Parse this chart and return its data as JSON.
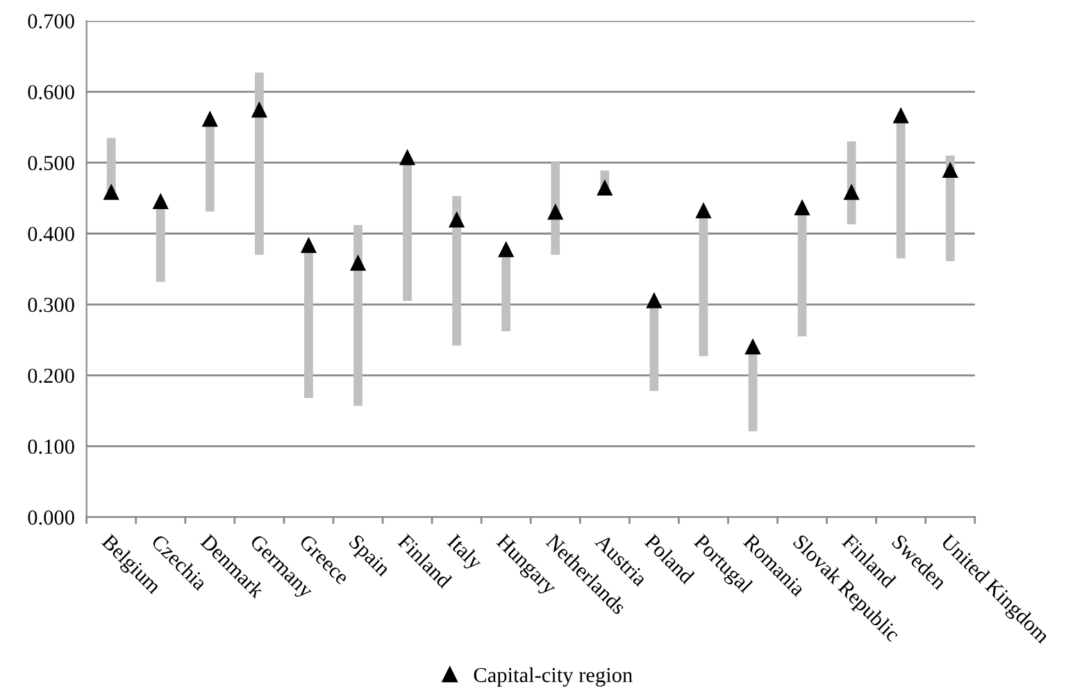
{
  "chart_data": {
    "type": "bar",
    "categories": [
      "Belgium",
      "Czechia",
      "Denmark",
      "Germany",
      "Greece",
      "Spain",
      "Finland",
      "Italy",
      "Hungary",
      "Netherlands",
      "Austria",
      "Poland",
      "Portugal",
      "Romania",
      "Slovak Republic",
      "Finland",
      "Sweden",
      "United Kingdom"
    ],
    "series": [
      {
        "color": "#c0c0c0",
        "base": [
          0.459,
          0.332,
          0.431,
          0.37,
          0.168,
          0.157,
          0.305,
          0.242,
          0.262,
          0.37,
          0.465,
          0.178,
          0.227,
          0.121,
          0.255,
          0.413,
          0.365,
          0.361
        ],
        "values": [
          0.076,
          0.114,
          0.131,
          0.257,
          0.216,
          0.255,
          0.203,
          0.211,
          0.116,
          0.132,
          0.024,
          0.128,
          0.206,
          0.12,
          0.182,
          0.117,
          0.202,
          0.149
        ]
      },
      {
        "type": "scatter",
        "name": "Capital-city region",
        "color": "#000000",
        "marker": "triangle",
        "values": [
          0.459,
          0.446,
          0.562,
          0.575,
          0.384,
          0.359,
          0.508,
          0.42,
          0.378,
          0.431,
          0.465,
          0.306,
          0.433,
          0.241,
          0.437,
          0.459,
          0.567,
          0.49
        ]
      }
    ],
    "ylim": [
      0,
      0.7
    ],
    "yticks": [
      {
        "value": 0,
        "label": "0.000"
      },
      {
        "value": 0.1,
        "label": "0.100"
      },
      {
        "value": 0.2,
        "label": "0.200"
      },
      {
        "value": 0.3,
        "label": "0.300"
      },
      {
        "value": 0.4,
        "label": "0.400"
      },
      {
        "value": 0.5,
        "label": "0.500"
      },
      {
        "value": 0.6,
        "label": "0.600"
      },
      {
        "value": 0.7,
        "label": "0.700"
      }
    ],
    "grid": "y",
    "legend": "bottom"
  }
}
